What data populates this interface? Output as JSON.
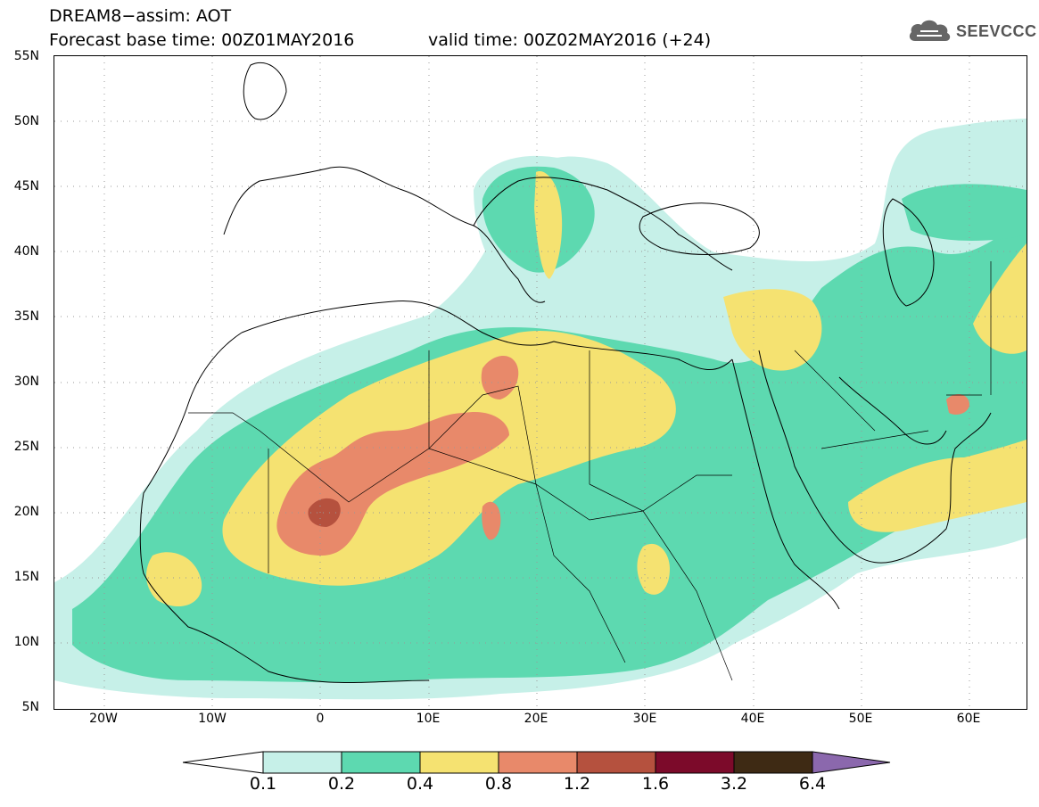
{
  "header": {
    "title_line1": "DREAM8−assim: AOT",
    "title_line2": "Forecast base time: 00Z01MAY2016",
    "title_valid": "valid time: 00Z02MAY2016 (+24)",
    "logo_text": "SEEVCCC"
  },
  "axes": {
    "lat_labels": [
      "55N",
      "50N",
      "45N",
      "40N",
      "35N",
      "30N",
      "25N",
      "20N",
      "15N",
      "10N",
      "5N"
    ],
    "lon_labels": [
      "20W",
      "10W",
      "0",
      "10E",
      "20E",
      "30E",
      "40E",
      "50E",
      "60E"
    ]
  },
  "colorbar": {
    "labels": [
      "0.1",
      "0.2",
      "0.4",
      "0.8",
      "1.2",
      "1.6",
      "3.2",
      "6.4"
    ],
    "colors": [
      "#c6f0e8",
      "#5dd9b0",
      "#f5e271",
      "#e8896a",
      "#b5513e",
      "#7c0a2a",
      "#3e2a14",
      "#8b68ad"
    ]
  },
  "legend_colors": {
    "c1": "#c6f0e8",
    "c2": "#5dd9b0",
    "c3": "#f5e271",
    "c4": "#e8896a",
    "c5": "#b5513e"
  }
}
